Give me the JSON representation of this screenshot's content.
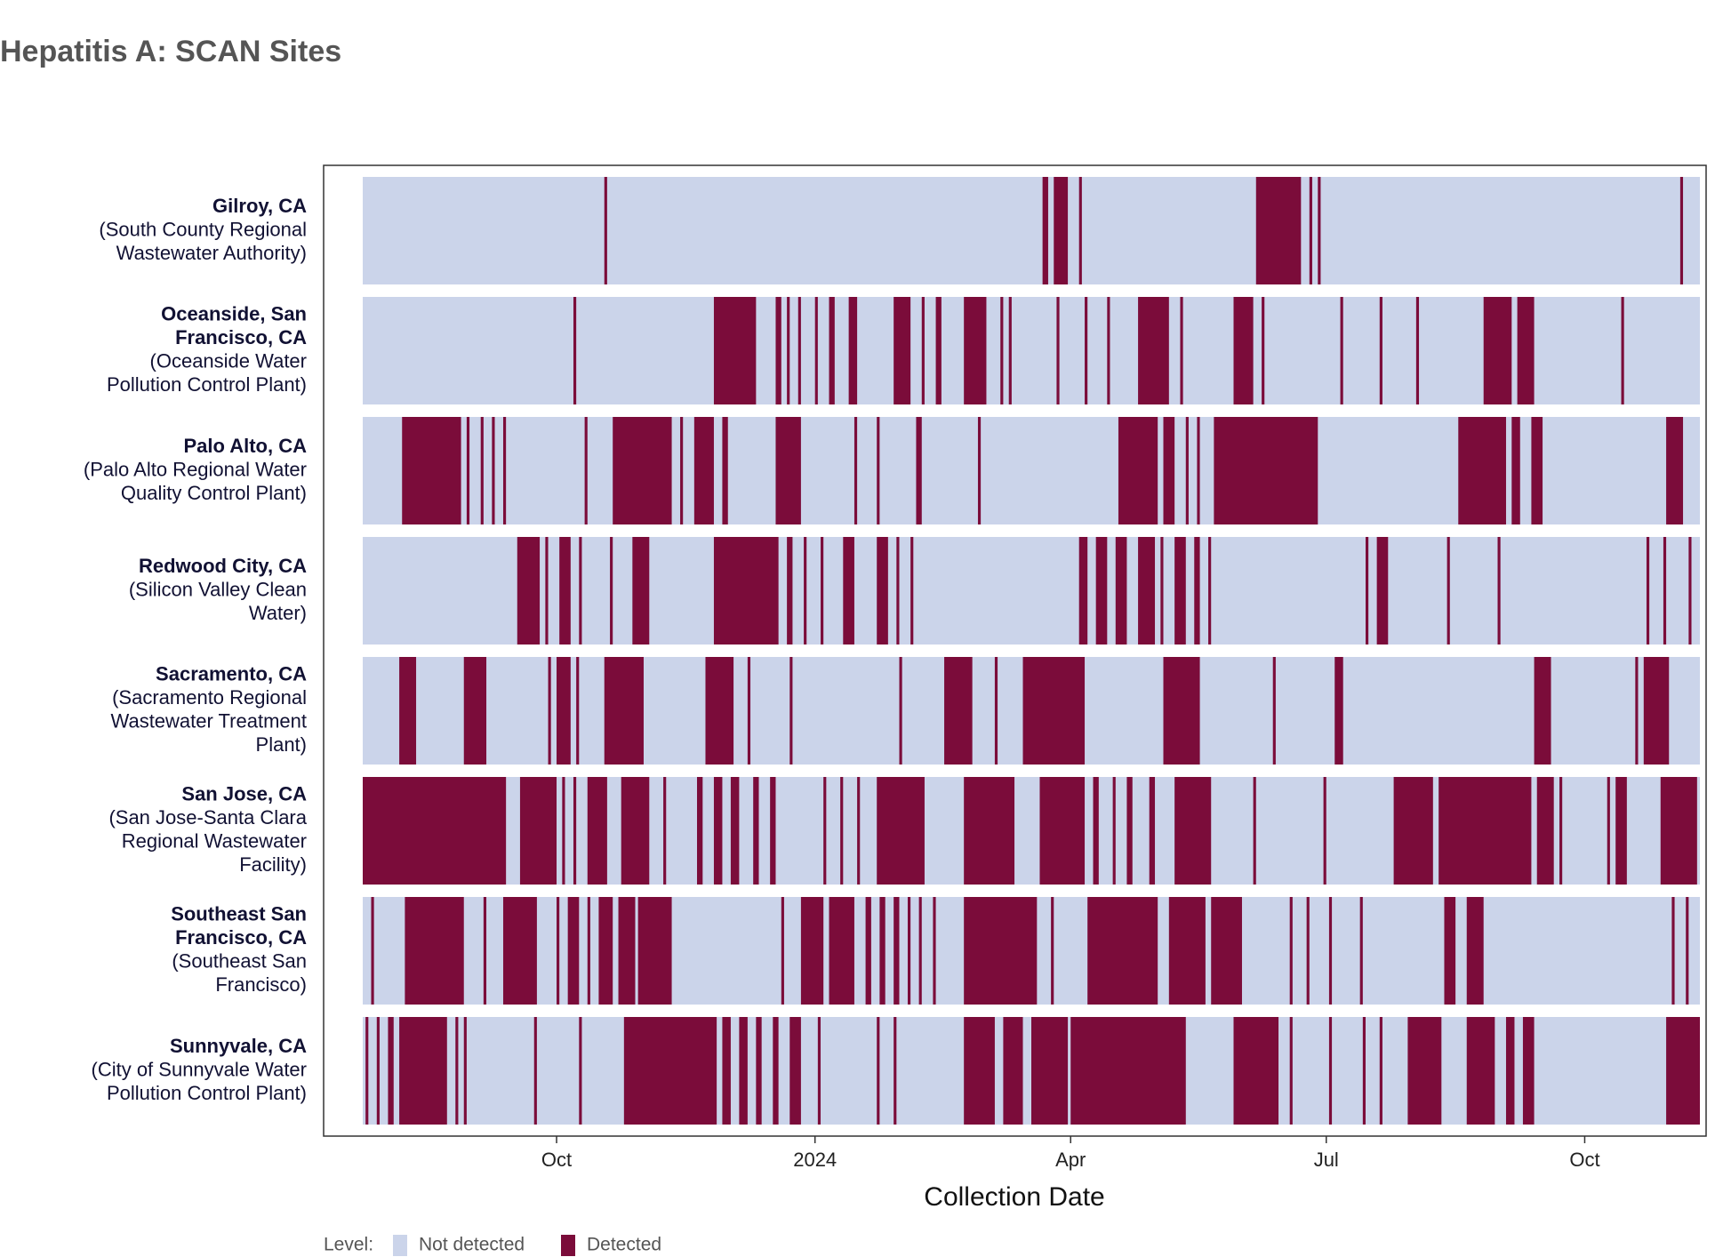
{
  "chart_data": {
    "type": "heatmap",
    "title": "Hepatitis A: SCAN Sites",
    "x_label": "Collection Date",
    "xlim": [
      0,
      476
    ],
    "xticks": [
      {
        "value": 69,
        "label": "Oct"
      },
      {
        "value": 161,
        "label": "2024"
      },
      {
        "value": 252,
        "label": "Apr"
      },
      {
        "value": 343,
        "label": "Jul"
      },
      {
        "value": 435,
        "label": "Oct"
      }
    ],
    "legend_title": "Level:",
    "levels": [
      {
        "name": "Not detected",
        "color": "#cbd4ea"
      },
      {
        "name": "Detected",
        "color": "#7b0c3a"
      }
    ],
    "rows": [
      {
        "name_lines": [
          "Gilroy, CA"
        ],
        "facility_lines": [
          "(South County Regional",
          "Wastewater Authority)"
        ],
        "detected": [
          [
            86,
            87
          ],
          [
            242,
            244
          ],
          [
            246,
            251
          ],
          [
            255,
            256
          ],
          [
            318,
            334
          ],
          [
            337,
            338
          ],
          [
            340,
            341
          ],
          [
            469,
            470
          ]
        ]
      },
      {
        "name_lines": [
          "Oceanside, San",
          "Francisco, CA"
        ],
        "facility_lines": [
          "(Oceanside Water",
          "Pollution Control Plant)"
        ],
        "detected": [
          [
            75,
            76
          ],
          [
            125,
            140
          ],
          [
            147,
            149
          ],
          [
            151,
            152
          ],
          [
            155,
            156
          ],
          [
            161,
            162
          ],
          [
            166,
            168
          ],
          [
            173,
            176
          ],
          [
            189,
            195
          ],
          [
            199,
            200
          ],
          [
            204,
            206
          ],
          [
            214,
            222
          ],
          [
            227,
            228
          ],
          [
            230,
            231
          ],
          [
            247,
            248
          ],
          [
            257,
            258
          ],
          [
            265,
            266
          ],
          [
            276,
            287
          ],
          [
            291,
            292
          ],
          [
            310,
            317
          ],
          [
            320,
            321
          ],
          [
            348,
            349
          ],
          [
            362,
            363
          ],
          [
            375,
            376
          ],
          [
            399,
            409
          ],
          [
            411,
            417
          ],
          [
            448,
            449
          ]
        ]
      },
      {
        "name_lines": [
          "Palo Alto, CA"
        ],
        "facility_lines": [
          "(Palo Alto Regional Water",
          "Quality Control Plant)"
        ],
        "detected": [
          [
            14,
            35
          ],
          [
            37,
            38
          ],
          [
            42,
            43
          ],
          [
            46,
            47
          ],
          [
            50,
            51
          ],
          [
            79,
            80
          ],
          [
            89,
            110
          ],
          [
            113,
            114
          ],
          [
            118,
            125
          ],
          [
            128,
            130
          ],
          [
            147,
            156
          ],
          [
            175,
            176
          ],
          [
            183,
            184
          ],
          [
            197,
            199
          ],
          [
            219,
            220
          ],
          [
            269,
            283
          ],
          [
            285,
            289
          ],
          [
            293,
            294
          ],
          [
            297,
            298
          ],
          [
            303,
            340
          ],
          [
            390,
            407
          ],
          [
            409,
            412
          ],
          [
            416,
            420
          ],
          [
            464,
            470
          ]
        ]
      },
      {
        "name_lines": [
          "Redwood City, CA"
        ],
        "facility_lines": [
          "(Silicon Valley Clean",
          "Water)"
        ],
        "detected": [
          [
            55,
            63
          ],
          [
            65,
            66
          ],
          [
            70,
            74
          ],
          [
            77,
            78
          ],
          [
            88,
            89
          ],
          [
            96,
            102
          ],
          [
            125,
            148
          ],
          [
            151,
            153
          ],
          [
            157,
            158
          ],
          [
            163,
            164
          ],
          [
            171,
            175
          ],
          [
            183,
            187
          ],
          [
            190,
            191
          ],
          [
            195,
            196
          ],
          [
            255,
            258
          ],
          [
            261,
            265
          ],
          [
            268,
            272
          ],
          [
            276,
            282
          ],
          [
            284,
            285
          ],
          [
            289,
            293
          ],
          [
            296,
            298
          ],
          [
            301,
            302
          ],
          [
            357,
            358
          ],
          [
            361,
            365
          ],
          [
            386,
            387
          ],
          [
            404,
            405
          ],
          [
            457,
            458
          ],
          [
            463,
            464
          ],
          [
            472,
            473
          ]
        ]
      },
      {
        "name_lines": [
          "Sacramento, CA"
        ],
        "facility_lines": [
          "(Sacramento Regional",
          "Wastewater Treatment",
          "Plant)"
        ],
        "detected": [
          [
            13,
            19
          ],
          [
            36,
            44
          ],
          [
            66,
            67
          ],
          [
            69,
            74
          ],
          [
            76,
            77
          ],
          [
            86,
            100
          ],
          [
            122,
            132
          ],
          [
            137,
            138
          ],
          [
            152,
            153
          ],
          [
            191,
            192
          ],
          [
            207,
            217
          ],
          [
            225,
            226
          ],
          [
            235,
            257
          ],
          [
            285,
            298
          ],
          [
            324,
            325
          ],
          [
            346,
            349
          ],
          [
            417,
            423
          ],
          [
            453,
            454
          ],
          [
            456,
            465
          ]
        ]
      },
      {
        "name_lines": [
          "San Jose, CA"
        ],
        "facility_lines": [
          "(San Jose-Santa Clara",
          "Regional Wastewater",
          "Facility)"
        ],
        "detected": [
          [
            0,
            51
          ],
          [
            56,
            69
          ],
          [
            71,
            72
          ],
          [
            75,
            76
          ],
          [
            80,
            87
          ],
          [
            92,
            102
          ],
          [
            107,
            108
          ],
          [
            119,
            121
          ],
          [
            125,
            128
          ],
          [
            131,
            134
          ],
          [
            139,
            141
          ],
          [
            145,
            147
          ],
          [
            164,
            165
          ],
          [
            170,
            171
          ],
          [
            176,
            177
          ],
          [
            183,
            200
          ],
          [
            214,
            232
          ],
          [
            241,
            257
          ],
          [
            260,
            262
          ],
          [
            267,
            268
          ],
          [
            272,
            274
          ],
          [
            280,
            282
          ],
          [
            289,
            302
          ],
          [
            317,
            318
          ],
          [
            342,
            343
          ],
          [
            367,
            381
          ],
          [
            383,
            416
          ],
          [
            418,
            424
          ],
          [
            426,
            427
          ],
          [
            443,
            444
          ],
          [
            446,
            450
          ],
          [
            462,
            475
          ]
        ]
      },
      {
        "name_lines": [
          "Southeast San",
          "Francisco, CA"
        ],
        "facility_lines": [
          "(Southeast San",
          "Francisco)"
        ],
        "detected": [
          [
            3,
            4
          ],
          [
            15,
            36
          ],
          [
            43,
            44
          ],
          [
            50,
            62
          ],
          [
            69,
            70
          ],
          [
            73,
            77
          ],
          [
            80,
            81
          ],
          [
            84,
            89
          ],
          [
            91,
            97
          ],
          [
            98,
            110
          ],
          [
            149,
            150
          ],
          [
            156,
            164
          ],
          [
            166,
            175
          ],
          [
            179,
            181
          ],
          [
            184,
            186
          ],
          [
            189,
            191
          ],
          [
            194,
            195
          ],
          [
            198,
            199
          ],
          [
            203,
            204
          ],
          [
            214,
            240
          ],
          [
            245,
            246
          ],
          [
            258,
            283
          ],
          [
            287,
            300
          ],
          [
            302,
            313
          ],
          [
            330,
            331
          ],
          [
            336,
            337
          ],
          [
            344,
            345
          ],
          [
            355,
            356
          ],
          [
            385,
            389
          ],
          [
            393,
            399
          ],
          [
            466,
            467
          ],
          [
            471,
            472
          ]
        ]
      },
      {
        "name_lines": [
          "Sunnyvale, CA"
        ],
        "facility_lines": [
          "(City of Sunnyvale Water",
          "Pollution Control Plant)"
        ],
        "detected": [
          [
            1,
            2
          ],
          [
            5,
            6
          ],
          [
            9,
            11
          ],
          [
            13,
            30
          ],
          [
            33,
            34
          ],
          [
            36,
            37
          ],
          [
            61,
            62
          ],
          [
            77,
            78
          ],
          [
            93,
            126
          ],
          [
            128,
            131
          ],
          [
            134,
            137
          ],
          [
            140,
            142
          ],
          [
            146,
            148
          ],
          [
            152,
            156
          ],
          [
            162,
            163
          ],
          [
            183,
            184
          ],
          [
            189,
            190
          ],
          [
            214,
            225
          ],
          [
            228,
            235
          ],
          [
            238,
            251
          ],
          [
            252,
            293
          ],
          [
            310,
            326
          ],
          [
            330,
            331
          ],
          [
            344,
            345
          ],
          [
            356,
            357
          ],
          [
            362,
            363
          ],
          [
            372,
            384
          ],
          [
            393,
            403
          ],
          [
            407,
            410
          ],
          [
            413,
            417
          ],
          [
            464,
            476
          ]
        ]
      }
    ]
  }
}
